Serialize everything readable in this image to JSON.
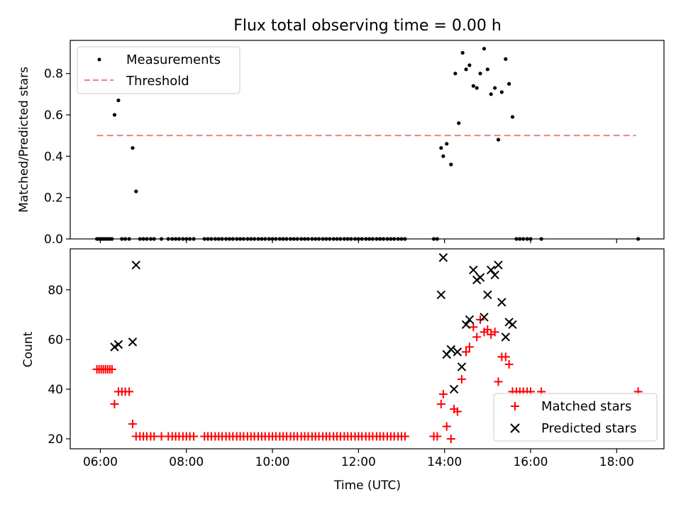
{
  "chart_data": [
    {
      "type": "scatter",
      "title": "Flux total observing time = 0.00 h",
      "xlabel": "",
      "ylabel": "Matched/Predicted stars",
      "xlim": [
        5.3,
        19.1
      ],
      "ylim": [
        0,
        0.96
      ],
      "yticks": [
        0.0,
        0.2,
        0.4,
        0.6,
        0.8
      ],
      "ytick_labels": [
        "0.0",
        "0.2",
        "0.4",
        "0.6",
        "0.8"
      ],
      "legend_position": "top-left",
      "series": [
        {
          "name": "Measurements",
          "style": "dot",
          "color": "#000000",
          "points": [
            [
              5.92,
              0
            ],
            [
              5.97,
              0
            ],
            [
              6.02,
              0
            ],
            [
              6.07,
              0
            ],
            [
              6.12,
              0
            ],
            [
              6.17,
              0
            ],
            [
              6.22,
              0
            ],
            [
              6.27,
              0
            ],
            [
              6.33,
              0.6
            ],
            [
              6.42,
              0.67
            ],
            [
              6.5,
              0
            ],
            [
              6.58,
              0
            ],
            [
              6.67,
              0
            ],
            [
              6.75,
              0.44
            ],
            [
              6.83,
              0.23
            ],
            [
              6.92,
              0
            ],
            [
              7.0,
              0
            ],
            [
              7.08,
              0
            ],
            [
              7.17,
              0
            ],
            [
              7.25,
              0
            ],
            [
              7.42,
              0
            ],
            [
              7.58,
              0
            ],
            [
              7.67,
              0
            ],
            [
              7.75,
              0
            ],
            [
              7.83,
              0
            ],
            [
              7.92,
              0
            ],
            [
              8.0,
              0
            ],
            [
              8.08,
              0
            ],
            [
              8.17,
              0
            ],
            [
              8.42,
              0
            ],
            [
              8.5,
              0
            ],
            [
              8.58,
              0
            ],
            [
              8.67,
              0
            ],
            [
              8.75,
              0
            ],
            [
              8.83,
              0
            ],
            [
              8.92,
              0
            ],
            [
              9.0,
              0
            ],
            [
              9.08,
              0
            ],
            [
              9.17,
              0
            ],
            [
              9.25,
              0
            ],
            [
              9.33,
              0
            ],
            [
              9.42,
              0
            ],
            [
              9.5,
              0
            ],
            [
              9.58,
              0
            ],
            [
              9.67,
              0
            ],
            [
              9.75,
              0
            ],
            [
              9.83,
              0
            ],
            [
              9.92,
              0
            ],
            [
              10.0,
              0
            ],
            [
              10.08,
              0
            ],
            [
              10.17,
              0
            ],
            [
              10.25,
              0
            ],
            [
              10.33,
              0
            ],
            [
              10.42,
              0
            ],
            [
              10.5,
              0
            ],
            [
              10.58,
              0
            ],
            [
              10.67,
              0
            ],
            [
              10.75,
              0
            ],
            [
              10.83,
              0
            ],
            [
              10.92,
              0
            ],
            [
              11.0,
              0
            ],
            [
              11.08,
              0
            ],
            [
              11.17,
              0
            ],
            [
              11.25,
              0
            ],
            [
              11.33,
              0
            ],
            [
              11.42,
              0
            ],
            [
              11.5,
              0
            ],
            [
              11.58,
              0
            ],
            [
              11.67,
              0
            ],
            [
              11.75,
              0
            ],
            [
              11.83,
              0
            ],
            [
              11.92,
              0
            ],
            [
              12.0,
              0
            ],
            [
              12.08,
              0
            ],
            [
              12.17,
              0
            ],
            [
              12.25,
              0
            ],
            [
              12.33,
              0
            ],
            [
              12.42,
              0
            ],
            [
              12.5,
              0
            ],
            [
              12.58,
              0
            ],
            [
              12.67,
              0
            ],
            [
              12.75,
              0
            ],
            [
              12.83,
              0
            ],
            [
              12.92,
              0
            ],
            [
              13.0,
              0
            ],
            [
              13.08,
              0
            ],
            [
              13.75,
              0
            ],
            [
              13.83,
              0
            ],
            [
              13.92,
              0.44
            ],
            [
              13.97,
              0.4
            ],
            [
              14.05,
              0.46
            ],
            [
              14.15,
              0.36
            ],
            [
              14.25,
              0.8
            ],
            [
              14.33,
              0.56
            ],
            [
              14.42,
              0.9
            ],
            [
              14.5,
              0.82
            ],
            [
              14.58,
              0.84
            ],
            [
              14.67,
              0.74
            ],
            [
              14.75,
              0.73
            ],
            [
              14.83,
              0.8
            ],
            [
              14.92,
              0.92
            ],
            [
              15.0,
              0.82
            ],
            [
              15.08,
              0.7
            ],
            [
              15.17,
              0.73
            ],
            [
              15.25,
              0.48
            ],
            [
              15.33,
              0.71
            ],
            [
              15.42,
              0.87
            ],
            [
              15.5,
              0.75
            ],
            [
              15.58,
              0.59
            ],
            [
              15.67,
              0
            ],
            [
              15.75,
              0
            ],
            [
              15.83,
              0
            ],
            [
              15.92,
              0
            ],
            [
              16.0,
              0
            ],
            [
              16.25,
              0
            ],
            [
              18.5,
              0
            ]
          ]
        },
        {
          "name": "Threshold",
          "style": "dashed-line",
          "color": "#f08080",
          "x": [
            5.92,
            18.45
          ],
          "values": [
            0.5,
            0.5
          ]
        }
      ]
    },
    {
      "type": "scatter",
      "title": "",
      "xlabel": "Time (UTC)",
      "ylabel": "Count",
      "xlim": [
        5.3,
        19.1
      ],
      "ylim": [
        16,
        96.5
      ],
      "xticks": [
        6,
        8,
        10,
        12,
        14,
        16,
        18
      ],
      "xtick_labels": [
        "06:00",
        "08:00",
        "10:00",
        "12:00",
        "14:00",
        "16:00",
        "18:00"
      ],
      "yticks": [
        20,
        40,
        60,
        80
      ],
      "ytick_labels": [
        "20",
        "40",
        "60",
        "80"
      ],
      "legend_position": "bottom-right",
      "series": [
        {
          "name": "Matched stars",
          "style": "plus",
          "color": "#ff0000",
          "points": [
            [
              5.92,
              48
            ],
            [
              5.97,
              48
            ],
            [
              6.02,
              48
            ],
            [
              6.07,
              48
            ],
            [
              6.12,
              48
            ],
            [
              6.17,
              48
            ],
            [
              6.22,
              48
            ],
            [
              6.27,
              48
            ],
            [
              6.33,
              34
            ],
            [
              6.42,
              39
            ],
            [
              6.5,
              39
            ],
            [
              6.58,
              39
            ],
            [
              6.67,
              39
            ],
            [
              6.75,
              26
            ],
            [
              6.83,
              21
            ],
            [
              6.92,
              21
            ],
            [
              7.0,
              21
            ],
            [
              7.08,
              21
            ],
            [
              7.17,
              21
            ],
            [
              7.25,
              21
            ],
            [
              7.42,
              21
            ],
            [
              7.58,
              21
            ],
            [
              7.67,
              21
            ],
            [
              7.75,
              21
            ],
            [
              7.83,
              21
            ],
            [
              7.92,
              21
            ],
            [
              8.0,
              21
            ],
            [
              8.08,
              21
            ],
            [
              8.17,
              21
            ],
            [
              8.42,
              21
            ],
            [
              8.5,
              21
            ],
            [
              8.58,
              21
            ],
            [
              8.67,
              21
            ],
            [
              8.75,
              21
            ],
            [
              8.83,
              21
            ],
            [
              8.92,
              21
            ],
            [
              9.0,
              21
            ],
            [
              9.08,
              21
            ],
            [
              9.17,
              21
            ],
            [
              9.25,
              21
            ],
            [
              9.33,
              21
            ],
            [
              9.42,
              21
            ],
            [
              9.5,
              21
            ],
            [
              9.58,
              21
            ],
            [
              9.67,
              21
            ],
            [
              9.75,
              21
            ],
            [
              9.83,
              21
            ],
            [
              9.92,
              21
            ],
            [
              10.0,
              21
            ],
            [
              10.08,
              21
            ],
            [
              10.17,
              21
            ],
            [
              10.25,
              21
            ],
            [
              10.33,
              21
            ],
            [
              10.42,
              21
            ],
            [
              10.5,
              21
            ],
            [
              10.58,
              21
            ],
            [
              10.67,
              21
            ],
            [
              10.75,
              21
            ],
            [
              10.83,
              21
            ],
            [
              10.92,
              21
            ],
            [
              11.0,
              21
            ],
            [
              11.08,
              21
            ],
            [
              11.17,
              21
            ],
            [
              11.25,
              21
            ],
            [
              11.33,
              21
            ],
            [
              11.42,
              21
            ],
            [
              11.5,
              21
            ],
            [
              11.58,
              21
            ],
            [
              11.67,
              21
            ],
            [
              11.75,
              21
            ],
            [
              11.83,
              21
            ],
            [
              11.92,
              21
            ],
            [
              12.0,
              21
            ],
            [
              12.08,
              21
            ],
            [
              12.17,
              21
            ],
            [
              12.25,
              21
            ],
            [
              12.33,
              21
            ],
            [
              12.42,
              21
            ],
            [
              12.5,
              21
            ],
            [
              12.58,
              21
            ],
            [
              12.67,
              21
            ],
            [
              12.75,
              21
            ],
            [
              12.83,
              21
            ],
            [
              12.92,
              21
            ],
            [
              13.0,
              21
            ],
            [
              13.08,
              21
            ],
            [
              13.75,
              21
            ],
            [
              13.83,
              21
            ],
            [
              13.92,
              34
            ],
            [
              13.97,
              38
            ],
            [
              14.05,
              25
            ],
            [
              14.15,
              20
            ],
            [
              14.22,
              32
            ],
            [
              14.3,
              31
            ],
            [
              14.4,
              44
            ],
            [
              14.5,
              55
            ],
            [
              14.58,
              57
            ],
            [
              14.67,
              65
            ],
            [
              14.75,
              61
            ],
            [
              14.83,
              68
            ],
            [
              14.92,
              63
            ],
            [
              15.0,
              64
            ],
            [
              15.08,
              62
            ],
            [
              15.17,
              63
            ],
            [
              15.25,
              43
            ],
            [
              15.33,
              53
            ],
            [
              15.42,
              53
            ],
            [
              15.5,
              50
            ],
            [
              15.58,
              39
            ],
            [
              15.67,
              39
            ],
            [
              15.75,
              39
            ],
            [
              15.83,
              39
            ],
            [
              15.92,
              39
            ],
            [
              16.0,
              39
            ],
            [
              16.25,
              39
            ],
            [
              18.5,
              39
            ]
          ]
        },
        {
          "name": "Predicted stars",
          "style": "x",
          "color": "#000000",
          "points": [
            [
              6.33,
              57
            ],
            [
              6.42,
              58
            ],
            [
              6.75,
              59
            ],
            [
              6.83,
              90
            ],
            [
              13.92,
              78
            ],
            [
              13.97,
              93
            ],
            [
              14.05,
              54
            ],
            [
              14.15,
              56
            ],
            [
              14.22,
              40
            ],
            [
              14.3,
              55
            ],
            [
              14.4,
              49
            ],
            [
              14.5,
              66
            ],
            [
              14.58,
              68
            ],
            [
              14.67,
              88
            ],
            [
              14.75,
              84
            ],
            [
              14.83,
              85
            ],
            [
              14.92,
              69
            ],
            [
              15.0,
              78
            ],
            [
              15.08,
              88
            ],
            [
              15.17,
              86
            ],
            [
              15.25,
              90
            ],
            [
              15.33,
              75
            ],
            [
              15.42,
              61
            ],
            [
              15.5,
              67
            ],
            [
              15.58,
              66
            ]
          ]
        }
      ]
    }
  ]
}
